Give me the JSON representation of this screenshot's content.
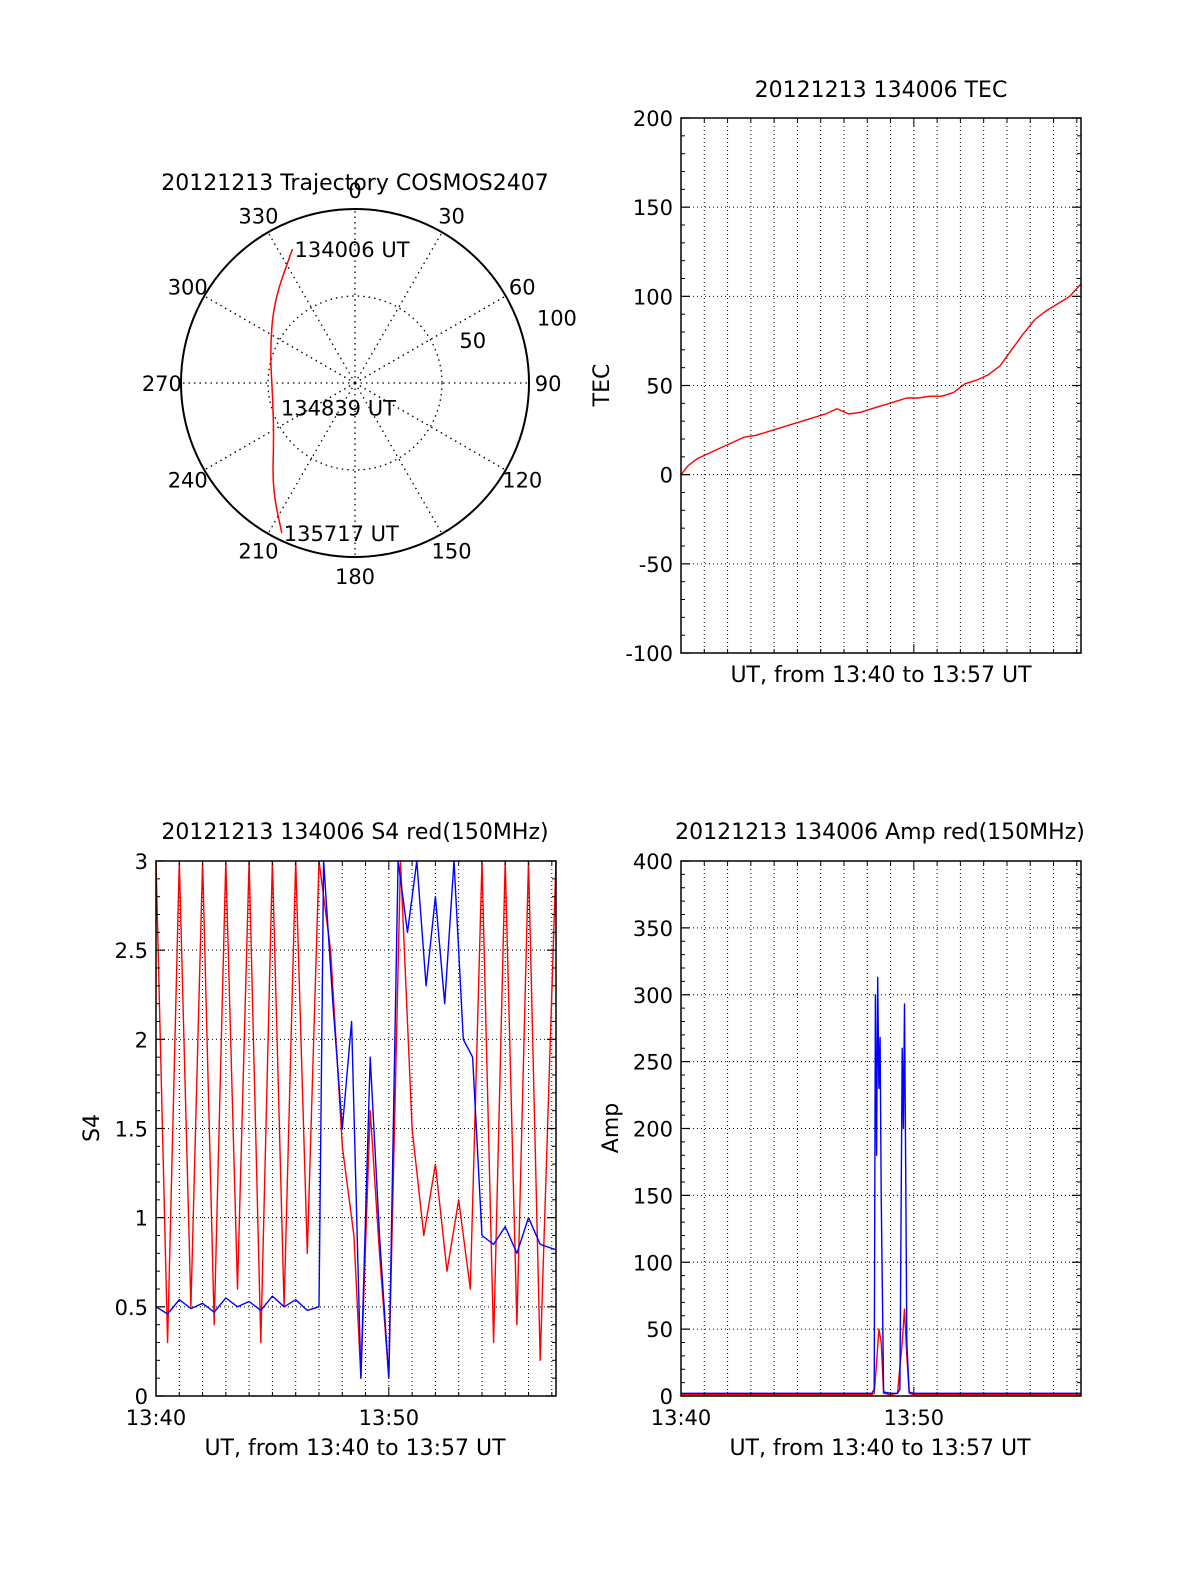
{
  "chart_data": [
    {
      "id": "trajectory",
      "type": "polar",
      "title": "20121213 Trajectory COSMOS2407",
      "azimuth_labels": [
        "0",
        "30",
        "60",
        "90",
        "120",
        "150",
        "180",
        "210",
        "240",
        "270",
        "300",
        "330"
      ],
      "azimuths": [
        0,
        30,
        60,
        90,
        120,
        150,
        180,
        210,
        240,
        270,
        300,
        330
      ],
      "radial_rings": [
        50,
        100
      ],
      "radial_labels": [
        "50",
        "100"
      ],
      "annotations": [
        {
          "text": "134006 UT",
          "az": 335,
          "r": 85
        },
        {
          "text": "134839 UT",
          "az": 252,
          "r": 46
        },
        {
          "text": "135717 UT",
          "az": 206,
          "r": 96
        }
      ],
      "track": {
        "color": "#ff0000",
        "az": [
          335,
          315,
          290,
          260,
          235,
          218,
          206
        ],
        "r": [
          85,
          66,
          52,
          48,
          57,
          77,
          96
        ]
      }
    },
    {
      "id": "tec",
      "type": "line",
      "title": "20121213 134006 TEC",
      "xlabel": "UT, from 13:40 to 13:57 UT",
      "ylabel": "TEC",
      "ylim": [
        -100,
        200
      ],
      "yticks": [
        -100,
        -50,
        0,
        50,
        100,
        150,
        200
      ],
      "xlim": [
        0,
        17.18
      ],
      "grid": true,
      "series": [
        {
          "color": "#ff0000",
          "x": [
            0,
            0.3,
            0.7,
            1.2,
            1.7,
            2.2,
            2.7,
            3.2,
            3.7,
            4.2,
            4.7,
            5.2,
            5.7,
            6.2,
            6.7,
            7.2,
            7.7,
            8.2,
            8.7,
            9.2,
            9.7,
            10.2,
            10.7,
            11.2,
            11.7,
            12.2,
            12.7,
            13.2,
            13.7,
            14.2,
            14.7,
            15.2,
            15.7,
            16.2,
            16.7,
            17.18
          ],
          "y": [
            0,
            5,
            9,
            12,
            15,
            18,
            21,
            22,
            24,
            26,
            28,
            30,
            32,
            34,
            37,
            34,
            35,
            37,
            39,
            41,
            43,
            43,
            44,
            44,
            46,
            51,
            53,
            56,
            61,
            70,
            79,
            87,
            92,
            96,
            100,
            107
          ]
        }
      ]
    },
    {
      "id": "s4",
      "type": "line",
      "title": "20121213 134006 S4 red(150MHz)",
      "xlabel": "UT, from 13:40 to 13:57 UT",
      "ylabel": "S4",
      "ylim": [
        0,
        3
      ],
      "yticks": [
        0,
        0.5,
        1,
        1.5,
        2,
        2.5,
        3
      ],
      "ytick_labels": [
        "0",
        "0.5",
        "1",
        "1.5",
        "2",
        "2.5",
        "3"
      ],
      "xlim": [
        0,
        17.18
      ],
      "xticks": [
        0,
        10
      ],
      "xtick_labels": [
        "13:40",
        "13:50"
      ],
      "grid": true,
      "series": [
        {
          "color": "#ff0000",
          "x": [
            0,
            0.5,
            1,
            1.5,
            2,
            2.5,
            3,
            3.5,
            4,
            4.5,
            5,
            5.5,
            6,
            6.5,
            7,
            7.5,
            8,
            8.5,
            8.8,
            9.2,
            9.6,
            10,
            10.5,
            11,
            11.5,
            12,
            12.5,
            13,
            13.5,
            14,
            14.5,
            15,
            15.5,
            16,
            16.5,
            17.18
          ],
          "y": [
            3,
            0.3,
            3,
            0.5,
            3,
            0.4,
            3,
            0.6,
            3,
            0.3,
            3,
            0.5,
            3,
            0.8,
            3,
            2.5,
            1.4,
            0.9,
            0.1,
            1.6,
            0.8,
            0.1,
            3,
            1.5,
            0.9,
            1.3,
            0.7,
            1.1,
            0.6,
            3,
            0.3,
            3,
            0.4,
            3,
            0.2,
            3
          ]
        },
        {
          "color": "#0000ff",
          "x": [
            0,
            0.5,
            1,
            1.5,
            2,
            2.5,
            3,
            3.5,
            4,
            4.5,
            5,
            5.5,
            6,
            6.5,
            7,
            7.2,
            7.6,
            8,
            8.4,
            8.8,
            9.2,
            9.6,
            10,
            10.4,
            10.8,
            11.2,
            11.6,
            12,
            12.4,
            12.8,
            13.2,
            13.6,
            14,
            14.5,
            15,
            15.5,
            16,
            16.5,
            17.18
          ],
          "y": [
            0.5,
            0.46,
            0.54,
            0.49,
            0.52,
            0.47,
            0.55,
            0.5,
            0.53,
            0.48,
            0.56,
            0.5,
            0.54,
            0.48,
            0.5,
            3,
            2.2,
            1.5,
            2.1,
            0.1,
            1.9,
            0.9,
            0.1,
            3,
            2.6,
            3,
            2.3,
            2.8,
            2.2,
            3,
            2.0,
            1.9,
            0.9,
            0.85,
            0.95,
            0.8,
            1.0,
            0.85,
            0.82
          ]
        }
      ]
    },
    {
      "id": "amp",
      "type": "line",
      "title": "20121213 134006 Amp red(150MHz)",
      "xlabel": "UT, from 13:40 to 13:57 UT",
      "ylabel": "Amp",
      "ylim": [
        0,
        400
      ],
      "yticks": [
        0,
        50,
        100,
        150,
        200,
        250,
        300,
        350,
        400
      ],
      "xlim": [
        0,
        17.18
      ],
      "xticks": [
        0,
        10
      ],
      "xtick_labels": [
        "13:40",
        "13:50"
      ],
      "grid": true,
      "series": [
        {
          "color": "#ff0000",
          "x": [
            0,
            8.2,
            8.3,
            8.4,
            8.5,
            8.6,
            8.7,
            9.0,
            9.3,
            9.5,
            9.6,
            9.7,
            9.8,
            10.0,
            17.18
          ],
          "y": [
            1,
            1,
            2,
            25,
            50,
            40,
            2,
            1,
            2,
            40,
            65,
            30,
            2,
            1,
            1
          ]
        },
        {
          "color": "#0000ff",
          "x": [
            0,
            8.2,
            8.3,
            8.35,
            8.4,
            8.45,
            8.5,
            8.55,
            8.6,
            8.7,
            9.0,
            9.3,
            9.4,
            9.5,
            9.55,
            9.6,
            9.65,
            9.7,
            9.8,
            10.0,
            17.18
          ],
          "y": [
            2,
            2,
            5,
            300,
            180,
            313,
            230,
            268,
            150,
            3,
            2,
            2,
            5,
            260,
            200,
            293,
            170,
            40,
            3,
            2,
            2
          ]
        }
      ]
    }
  ]
}
